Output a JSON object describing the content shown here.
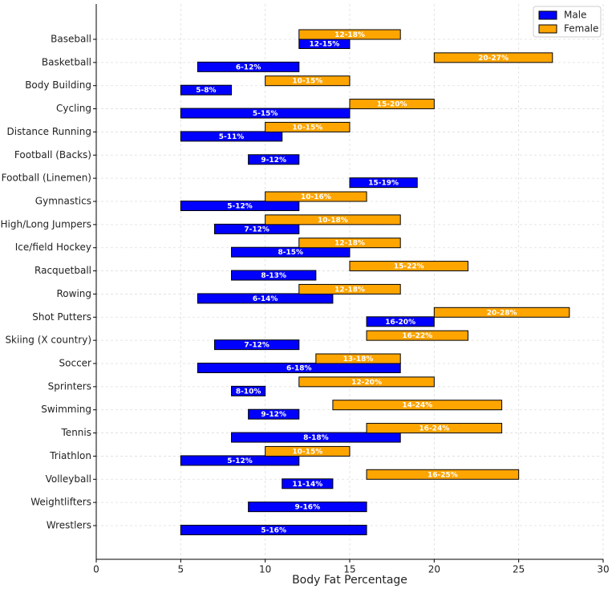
{
  "chart_data": {
    "type": "range-bar",
    "xlabel": "Body Fat Percentage",
    "categories": [
      "Baseball",
      "Basketball",
      "Body Building",
      "Cycling",
      "Distance Running",
      "Football (Backs)",
      "Football (Linemen)",
      "Gymnastics",
      "High/Long Jumpers",
      "Ice/field Hockey",
      "Racquetball",
      "Rowing",
      "Shot Putters",
      "Skiing (X country)",
      "Soccer",
      "Sprinters",
      "Swimming",
      "Tennis",
      "Triathlon",
      "Volleyball",
      "Weightlifters",
      "Wrestlers"
    ],
    "series": [
      {
        "name": "Male",
        "color": "#0000ff",
        "values": [
          [
            12,
            15
          ],
          [
            6,
            12
          ],
          [
            5,
            8
          ],
          [
            5,
            15
          ],
          [
            5,
            11
          ],
          [
            9,
            12
          ],
          [
            15,
            19
          ],
          [
            5,
            12
          ],
          [
            7,
            12
          ],
          [
            8,
            15
          ],
          [
            8,
            13
          ],
          [
            6,
            14
          ],
          [
            16,
            20
          ],
          [
            7,
            12
          ],
          [
            6,
            18
          ],
          [
            8,
            10
          ],
          [
            9,
            12
          ],
          [
            8,
            18
          ],
          [
            5,
            12
          ],
          [
            11,
            14
          ],
          [
            9,
            16
          ],
          [
            5,
            16
          ]
        ],
        "value_labels": [
          "12-15%",
          "6-12%",
          "5-8%",
          "5-15%",
          "5-11%",
          "9-12%",
          "15-19%",
          "5-12%",
          "7-12%",
          "8-15%",
          "8-13%",
          "6-14%",
          "16-20%",
          "7-12%",
          "6-18%",
          "8-10%",
          "9-12%",
          "8-18%",
          "5-12%",
          "11-14%",
          "9-16%",
          "5-16%"
        ]
      },
      {
        "name": "Female",
        "color": "#ffa500",
        "values": [
          [
            12,
            18
          ],
          [
            20,
            27
          ],
          [
            10,
            15
          ],
          [
            15,
            20
          ],
          [
            10,
            15
          ],
          null,
          null,
          [
            10,
            16
          ],
          [
            10,
            18
          ],
          [
            12,
            18
          ],
          [
            15,
            22
          ],
          [
            12,
            18
          ],
          [
            20,
            28
          ],
          [
            16,
            22
          ],
          [
            13,
            18
          ],
          [
            12,
            20
          ],
          [
            14,
            24
          ],
          [
            16,
            24
          ],
          [
            10,
            15
          ],
          [
            16,
            25
          ],
          null,
          null
        ],
        "value_labels": [
          "12-18%",
          "20-27%",
          "10-15%",
          "15-20%",
          "10-15%",
          null,
          null,
          "10-16%",
          "10-18%",
          "12-18%",
          "15-22%",
          "12-18%",
          "20-28%",
          "16-22%",
          "13-18%",
          "12-20%",
          "14-24%",
          "16-24%",
          "10-15%",
          "16-25%",
          null,
          null
        ]
      }
    ],
    "xlim": [
      0,
      30
    ],
    "xticks": [
      0,
      5,
      10,
      15,
      20,
      25,
      30
    ],
    "grid": true,
    "legend": "upper right"
  }
}
